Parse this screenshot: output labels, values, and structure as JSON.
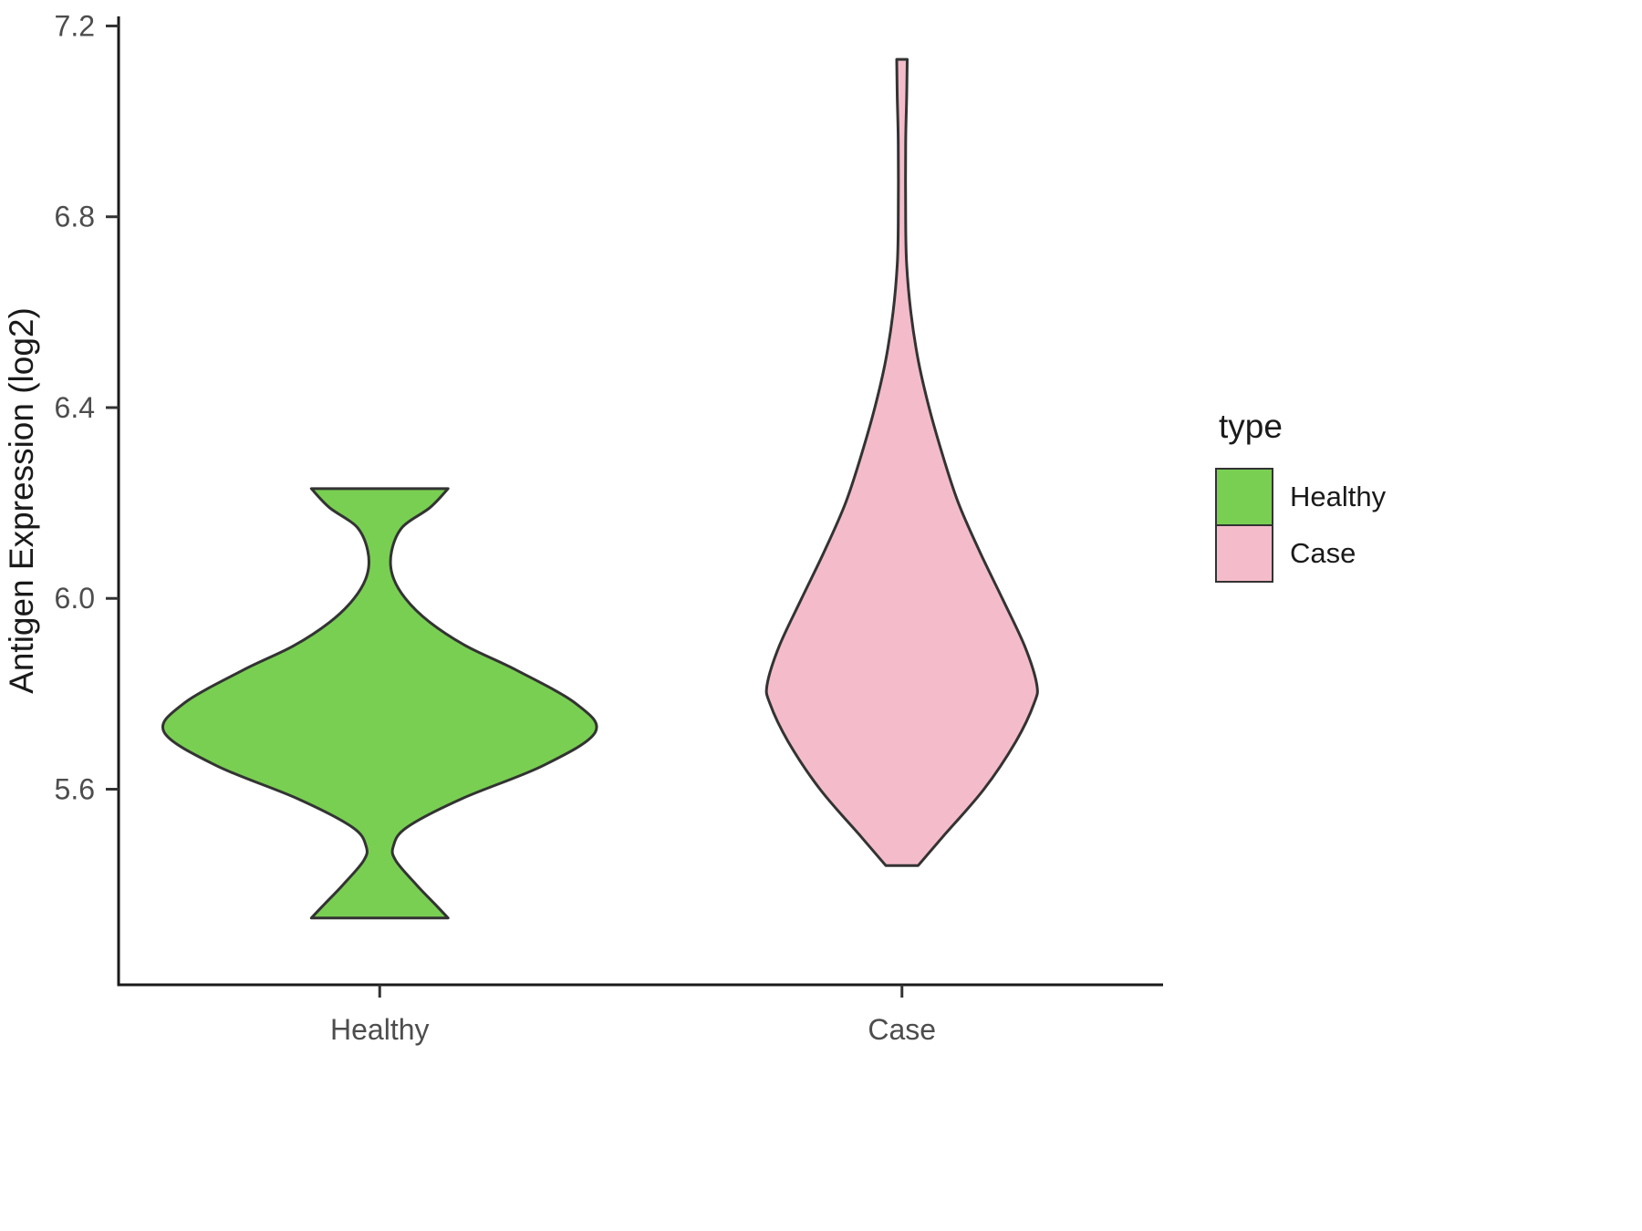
{
  "chart_data": {
    "type": "violin",
    "title": "",
    "xlabel": "",
    "ylabel": "Antigen Expression (log2)",
    "categories": [
      "Healthy",
      "Case"
    ],
    "y_ticks": [
      5.6,
      6.0,
      6.4,
      6.8,
      7.2
    ],
    "y_tick_labels": [
      "5.6",
      "6.0",
      "6.4",
      "6.8",
      "7.2"
    ],
    "ylim": [
      5.19,
      7.22
    ],
    "grid": false,
    "legend": {
      "title": "type",
      "position": "right",
      "items": [
        {
          "label": "Healthy",
          "color": "#79cf52"
        },
        {
          "label": "Case",
          "color": "#f4bcca"
        }
      ]
    },
    "outline_color": "#333333",
    "axis_color": "#1a1a1a",
    "tick_label_color": "#4d4d4d",
    "series": [
      {
        "name": "Healthy",
        "color": "#79cf52",
        "profile": [
          [
            5.33,
            0.131
          ],
          [
            5.36,
            0.105
          ],
          [
            5.4,
            0.07
          ],
          [
            5.45,
            0.031
          ],
          [
            5.48,
            0.026
          ],
          [
            5.52,
            0.052
          ],
          [
            5.58,
            0.157
          ],
          [
            5.65,
            0.314
          ],
          [
            5.72,
            0.413
          ],
          [
            5.78,
            0.375
          ],
          [
            5.85,
            0.261
          ],
          [
            5.9,
            0.166
          ],
          [
            5.95,
            0.096
          ],
          [
            6.0,
            0.049
          ],
          [
            6.05,
            0.024
          ],
          [
            6.1,
            0.023
          ],
          [
            6.15,
            0.044
          ],
          [
            6.19,
            0.096
          ],
          [
            6.23,
            0.131
          ]
        ]
      },
      {
        "name": "Case",
        "color": "#f4bcca",
        "profile": [
          [
            5.44,
            0.031
          ],
          [
            5.5,
            0.078
          ],
          [
            5.6,
            0.157
          ],
          [
            5.7,
            0.218
          ],
          [
            5.78,
            0.253
          ],
          [
            5.82,
            0.258
          ],
          [
            5.9,
            0.235
          ],
          [
            6.0,
            0.192
          ],
          [
            6.1,
            0.148
          ],
          [
            6.2,
            0.108
          ],
          [
            6.3,
            0.078
          ],
          [
            6.4,
            0.052
          ],
          [
            6.5,
            0.031
          ],
          [
            6.6,
            0.017
          ],
          [
            6.7,
            0.009
          ],
          [
            6.8,
            0.007
          ],
          [
            6.95,
            0.007
          ],
          [
            7.05,
            0.009
          ],
          [
            7.13,
            0.01
          ]
        ]
      }
    ]
  }
}
